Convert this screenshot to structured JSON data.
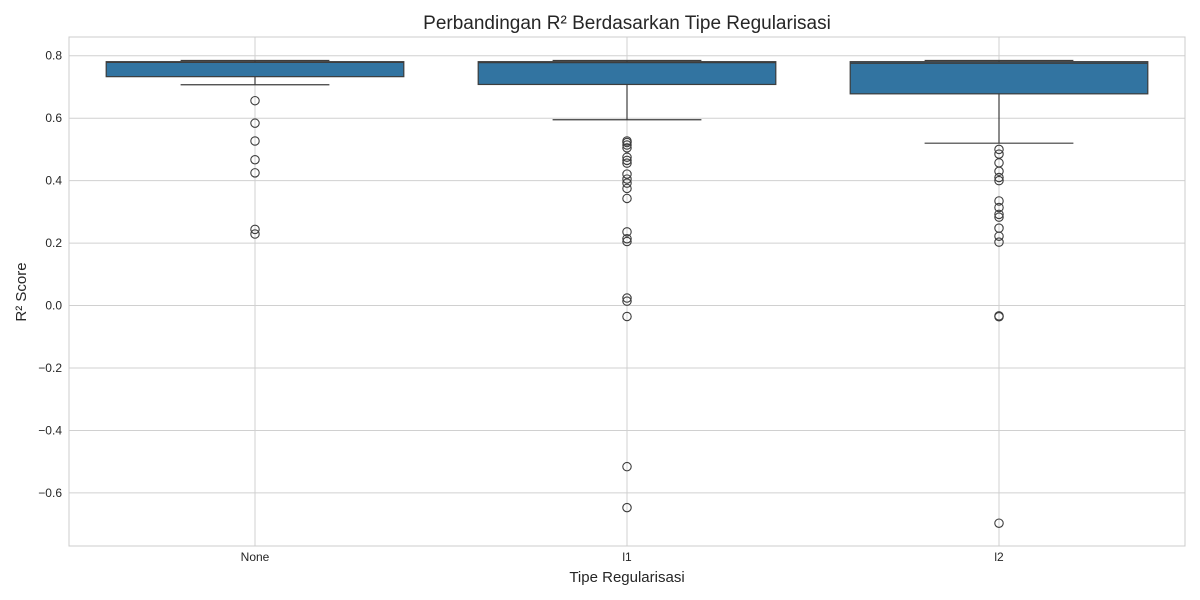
{
  "chart_data": {
    "type": "box",
    "title": "Perbandingan R² Berdasarkan Tipe Regularisasi",
    "xlabel": "Tipe Regularisasi",
    "ylabel": "R² Score",
    "ylim": [
      -0.77,
      0.86
    ],
    "yticks": [
      0.8,
      0.6,
      0.4,
      0.2,
      0.0,
      -0.2,
      -0.4,
      -0.6
    ],
    "ytick_labels": [
      "0.8",
      "0.6",
      "0.4",
      "0.2",
      "0.0",
      "−0.2",
      "−0.4",
      "−0.6"
    ],
    "grid": true,
    "box_color": "#3274a1",
    "edge_color": "#3d3d3d",
    "categories": [
      "None",
      "l1",
      "l2"
    ],
    "boxes": [
      {
        "category": "None",
        "whisker_low": 0.707,
        "q1": 0.733,
        "median": 0.779,
        "q3": 0.781,
        "whisker_high": 0.785,
        "outliers": [
          0.656,
          0.584,
          0.527,
          0.467,
          0.425,
          0.244,
          0.229
        ]
      },
      {
        "category": "l1",
        "whisker_low": 0.595,
        "q1": 0.708,
        "median": 0.778,
        "q3": 0.781,
        "whisker_high": 0.785,
        "outliers": [
          0.527,
          0.522,
          0.514,
          0.505,
          0.475,
          0.465,
          0.456,
          0.421,
          0.405,
          0.392,
          0.375,
          0.343,
          0.236,
          0.214,
          0.205,
          0.024,
          0.014,
          -0.035,
          -0.516,
          -0.647
        ]
      },
      {
        "category": "l2",
        "whisker_low": 0.52,
        "q1": 0.678,
        "median": 0.776,
        "q3": 0.781,
        "whisker_high": 0.785,
        "outliers": [
          0.5,
          0.485,
          0.457,
          0.43,
          0.41,
          0.4,
          0.335,
          0.314,
          0.292,
          0.283,
          0.248,
          0.222,
          0.203,
          -0.033,
          -0.036,
          -0.697
        ]
      }
    ]
  }
}
